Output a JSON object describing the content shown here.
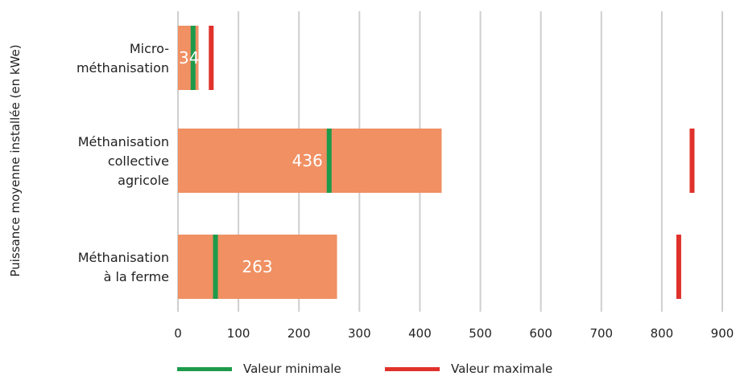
{
  "colors": {
    "bar": "#F09063",
    "min": "#1E9A4B",
    "max": "#E0312B",
    "grid": "#CFCFCF",
    "barLabel": "#FFFFFF"
  },
  "chart_data": {
    "type": "bar",
    "orientation": "horizontal",
    "ylabel": "Puissance moyenne installée (en kWe)",
    "xlim": [
      0,
      900
    ],
    "xticks": [
      "0",
      "100",
      "200",
      "300",
      "400",
      "500",
      "600",
      "700",
      "800",
      "900"
    ],
    "grid": true,
    "legend_position": "bottom",
    "categories": [
      [
        "Micro-",
        "méthanisation"
      ],
      [
        "Méthanisation",
        "collective",
        "agricole"
      ],
      [
        "Méthanisation",
        "à la ferme"
      ]
    ],
    "series": [
      {
        "name": "Puissance moyenne",
        "values": [
          34,
          436,
          263
        ]
      },
      {
        "name": "Valeur minimale",
        "values": [
          25,
          250,
          62
        ]
      },
      {
        "name": "Valeur maximale",
        "values": [
          55,
          850,
          828
        ]
      }
    ],
    "data_labels": [
      "34",
      "436",
      "263"
    ],
    "legend": [
      "Valeur minimale",
      "Valeur maximale"
    ]
  }
}
